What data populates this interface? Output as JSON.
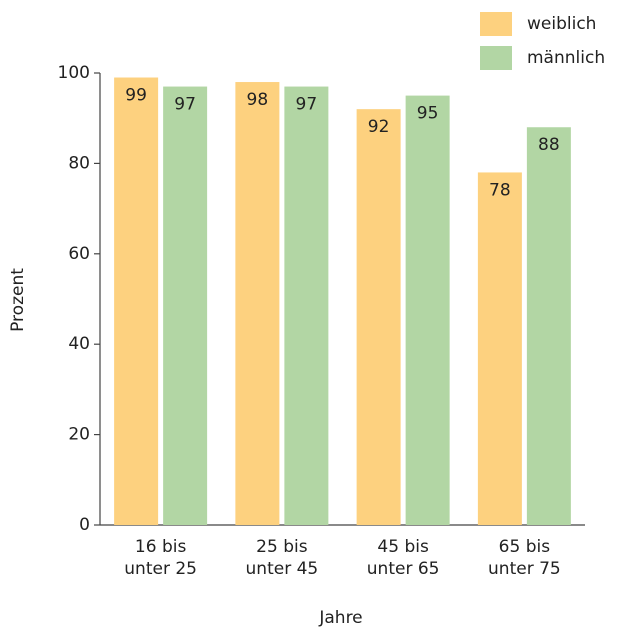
{
  "chart_data": {
    "type": "bar",
    "categories": [
      "16 bis\nunter 25",
      "25 bis\nunter 45",
      "45 bis\nunter 65",
      "65 bis\nunter 75"
    ],
    "series": [
      {
        "name": "weiblich",
        "color": "#fdd17f",
        "values": [
          99,
          98,
          92,
          78
        ]
      },
      {
        "name": "männlich",
        "color": "#b2d6a4",
        "values": [
          97,
          97,
          95,
          88
        ]
      }
    ],
    "y_label": "Prozent",
    "x_label": "Jahre",
    "ylim": [
      0,
      100
    ],
    "yticks": [
      0,
      20,
      40,
      60,
      80,
      100
    ],
    "grid": false,
    "legend": "top-right"
  }
}
